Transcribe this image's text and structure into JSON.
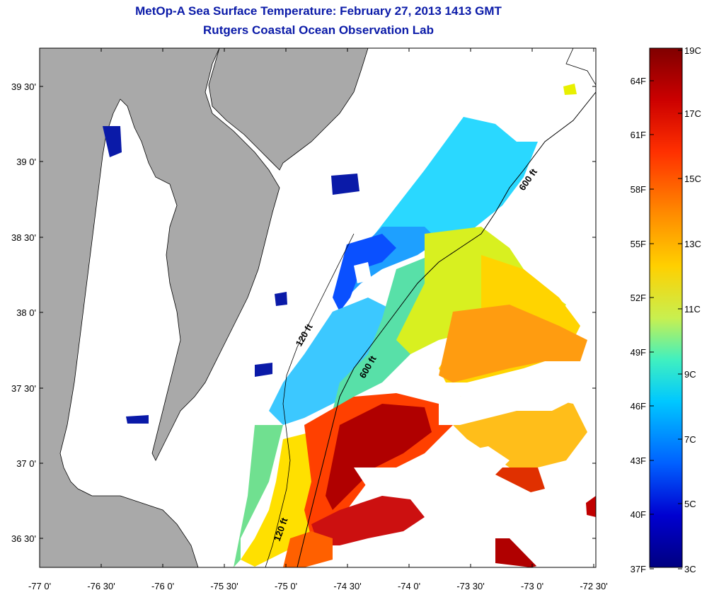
{
  "header": {
    "title": "MetOp-A Sea Surface Temperature:  February 27, 2013 1413 GMT",
    "subtitle": "Rutgers Coastal Ocean Observation Lab"
  },
  "map": {
    "lon_labels": [
      "-77 0'",
      "-76 30'",
      "-76 0'",
      "-75 30'",
      "-75 0'",
      "-74 30'",
      "-74 0'",
      "-73 30'",
      "-73 0'",
      "-72 30'"
    ],
    "lat_labels": [
      "39 30'",
      "39 0'",
      "38 30'",
      "38 0'",
      "37 30'",
      "37 0'",
      "36 30'"
    ],
    "contours": [
      "120 ft",
      "120 ft",
      "600 ft",
      "600 ft"
    ],
    "land_color": "#a9a9a9",
    "water_no_data_color": "#ffffff"
  },
  "colorbar": {
    "fahrenheit": [
      "64F",
      "61F",
      "58F",
      "55F",
      "52F",
      "49F",
      "46F",
      "43F",
      "40F",
      "37F"
    ],
    "celsius": [
      "19C",
      "17C",
      "15C",
      "13C",
      "11C",
      "9C",
      "7C",
      "5C",
      "3C"
    ],
    "gradient": [
      "#800000",
      "#d00000",
      "#ff4000",
      "#ff8c00",
      "#ffd000",
      "#c8f040",
      "#40f0c0",
      "#00c8ff",
      "#0060ff",
      "#0000c0",
      "#000080"
    ]
  }
}
